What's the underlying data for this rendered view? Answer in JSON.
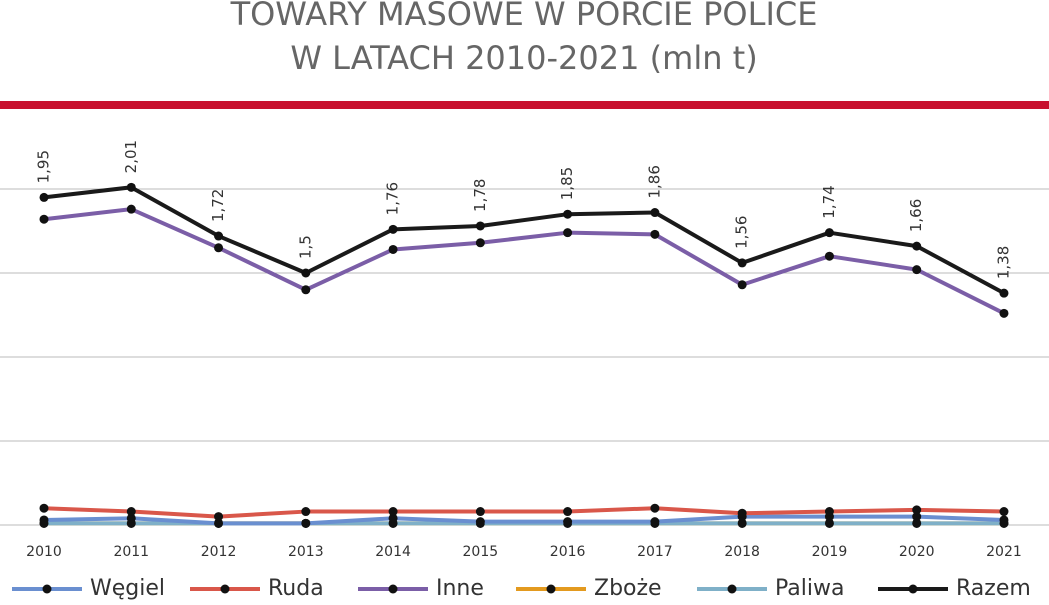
{
  "chart_data": {
    "type": "line",
    "title": [
      "TOWARY MASOWE W PORCIE POLICE",
      "W LATACH 2010-2021 (mln t)"
    ],
    "categories": [
      "2010",
      "2011",
      "2012",
      "2013",
      "2014",
      "2015",
      "2016",
      "2017",
      "2018",
      "2019",
      "2020",
      "2021"
    ],
    "series": [
      {
        "name": "Zboże",
        "color": "#e39a1f",
        "values": [
          0.01,
          0.01,
          0.01,
          0.01,
          0.01,
          0.01,
          0.01,
          0.01,
          0.01,
          0.01,
          0.01,
          0.01
        ]
      },
      {
        "name": "Paliwa",
        "color": "#7fb0c8",
        "values": [
          0.01,
          0.01,
          0.01,
          0.01,
          0.01,
          0.01,
          0.01,
          0.01,
          0.01,
          0.01,
          0.01,
          0.01
        ]
      },
      {
        "name": "Węgiel",
        "color": "#6a8fd0",
        "values": [
          0.03,
          0.04,
          0.01,
          0.01,
          0.04,
          0.02,
          0.02,
          0.02,
          0.05,
          0.05,
          0.05,
          0.03
        ]
      },
      {
        "name": "Ruda",
        "color": "#d9574a",
        "values": [
          0.1,
          0.08,
          0.05,
          0.08,
          0.08,
          0.08,
          0.08,
          0.1,
          0.07,
          0.08,
          0.09,
          0.08
        ]
      },
      {
        "name": "Inne",
        "color": "#7b5ea7",
        "values": [
          1.82,
          1.88,
          1.65,
          1.4,
          1.64,
          1.68,
          1.74,
          1.73,
          1.43,
          1.6,
          1.52,
          1.26
        ]
      },
      {
        "name": "Razem",
        "color": "#1a1a1a",
        "values": [
          1.95,
          2.01,
          1.72,
          1.5,
          1.76,
          1.78,
          1.85,
          1.86,
          1.56,
          1.74,
          1.66,
          1.38
        ],
        "value_labels": [
          "1,95",
          "2,01",
          "1,72",
          "1,5",
          "1,76",
          "1,78",
          "1,85",
          "1,86",
          "1,56",
          "1,74",
          "1,66",
          "1,38"
        ]
      }
    ],
    "legend_order": [
      "Węgiel",
      "Ruda",
      "Inne",
      "Zboże",
      "Paliwa",
      "Razem"
    ],
    "ylim": [
      0,
      2.5
    ],
    "yticks": [
      0,
      0.5,
      1,
      1.5,
      2
    ],
    "grid": true
  }
}
